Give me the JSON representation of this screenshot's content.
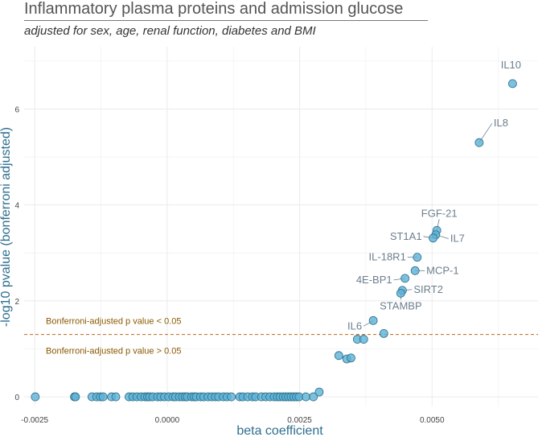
{
  "title": "Inflammatory plasma proteins and admission glucose",
  "subtitle": "adjusted for sex, age, renal function, diabetes and BMI",
  "chart_data": {
    "type": "scatter",
    "xlabel": "beta coefficient",
    "ylabel": "-log10 pvalue (bonferroni adjusted)",
    "xlim": [
      -0.0027,
      0.007
    ],
    "ylim": [
      -0.2,
      7.3
    ],
    "x_ticks": [
      -0.0025,
      0.0,
      0.0025,
      0.005
    ],
    "x_tick_labels": [
      "-0.0025",
      "0.0000",
      "0.0025",
      "0.0050"
    ],
    "y_ticks": [
      0,
      2,
      4,
      6
    ],
    "y_tick_labels": [
      "0",
      "2",
      "4",
      "6"
    ],
    "grid": true,
    "threshold": {
      "y": 1.3,
      "label_above": "Bonferroni-adjusted p value < 0.05",
      "label_below": "Bonferroni-adjusted p value > 0.05",
      "color": "#C0651B"
    },
    "point_color": "#5BB2D6",
    "point_stroke": "#2F6F8A",
    "label_color": "#6C7E8E",
    "labeled_points": [
      {
        "name": "IL10",
        "x": 0.00652,
        "y": 6.53
      },
      {
        "name": "IL8",
        "x": 0.00589,
        "y": 5.3
      },
      {
        "name": "FGF-21",
        "x": 0.00509,
        "y": 3.47
      },
      {
        "name": "IL7",
        "x": 0.00507,
        "y": 3.38
      },
      {
        "name": "ST1A1",
        "x": 0.00502,
        "y": 3.31
      },
      {
        "name": "IL-18R1",
        "x": 0.00472,
        "y": 2.91
      },
      {
        "name": "MCP-1",
        "x": 0.00468,
        "y": 2.63
      },
      {
        "name": "4E-BP1",
        "x": 0.00449,
        "y": 2.47
      },
      {
        "name": "SIRT2",
        "x": 0.00444,
        "y": 2.22
      },
      {
        "name": "STAMBP",
        "x": 0.00441,
        "y": 2.16
      },
      {
        "name": "IL6",
        "x": 0.00389,
        "y": 1.59
      }
    ],
    "points": [
      {
        "x": 0.00409,
        "y": 1.32
      },
      {
        "x": 0.00359,
        "y": 1.2
      },
      {
        "x": 0.00371,
        "y": 1.2
      },
      {
        "x": 0.00324,
        "y": 0.86
      },
      {
        "x": 0.00339,
        "y": 0.79
      },
      {
        "x": 0.00347,
        "y": 0.81
      },
      {
        "x": 0.00287,
        "y": 0.1
      },
      {
        "x": -0.00249,
        "y": 0
      },
      {
        "x": -0.00175,
        "y": 0
      },
      {
        "x": -0.00173,
        "y": 0
      },
      {
        "x": -0.00142,
        "y": 0
      },
      {
        "x": -0.00133,
        "y": 0
      },
      {
        "x": -0.00126,
        "y": 0
      },
      {
        "x": -0.00121,
        "y": 0
      },
      {
        "x": -0.00105,
        "y": 0
      },
      {
        "x": -0.00097,
        "y": 0
      },
      {
        "x": -0.00072,
        "y": 0
      },
      {
        "x": -0.00065,
        "y": 0
      },
      {
        "x": -0.00057,
        "y": 0
      },
      {
        "x": -0.00049,
        "y": 0
      },
      {
        "x": -0.00042,
        "y": 0
      },
      {
        "x": -0.00037,
        "y": 0
      },
      {
        "x": -0.00033,
        "y": 0
      },
      {
        "x": -0.00027,
        "y": 0
      },
      {
        "x": -0.00018,
        "y": 0
      },
      {
        "x": -0.00012,
        "y": 0
      },
      {
        "x": -5e-05,
        "y": 0
      },
      {
        "x": 3e-05,
        "y": 0
      },
      {
        "x": 0.00011,
        "y": 0
      },
      {
        "x": 0.00016,
        "y": 0
      },
      {
        "x": 0.00023,
        "y": 0
      },
      {
        "x": 0.00029,
        "y": 0
      },
      {
        "x": 0.00034,
        "y": 0
      },
      {
        "x": 0.00038,
        "y": 0
      },
      {
        "x": 0.00046,
        "y": 0
      },
      {
        "x": 0.00051,
        "y": 0
      },
      {
        "x": 0.00055,
        "y": 0
      },
      {
        "x": 0.00063,
        "y": 0
      },
      {
        "x": 0.00069,
        "y": 0
      },
      {
        "x": 0.00077,
        "y": 0
      },
      {
        "x": 0.00084,
        "y": 0
      },
      {
        "x": 0.00091,
        "y": 0
      },
      {
        "x": 0.00097,
        "y": 0
      },
      {
        "x": 0.00106,
        "y": 0
      },
      {
        "x": 0.00113,
        "y": 0
      },
      {
        "x": 0.00121,
        "y": 0
      },
      {
        "x": 0.00137,
        "y": 0
      },
      {
        "x": 0.00143,
        "y": 0
      },
      {
        "x": 0.00152,
        "y": 0
      },
      {
        "x": 0.00161,
        "y": 0
      },
      {
        "x": 0.00167,
        "y": 0
      },
      {
        "x": 0.00178,
        "y": 0
      },
      {
        "x": 0.00186,
        "y": 0
      },
      {
        "x": 0.00194,
        "y": 0
      },
      {
        "x": 0.00202,
        "y": 0
      },
      {
        "x": 0.00208,
        "y": 0
      },
      {
        "x": 0.00213,
        "y": 0
      },
      {
        "x": 0.00219,
        "y": 0
      },
      {
        "x": 0.00224,
        "y": 0
      },
      {
        "x": 0.00229,
        "y": 0
      },
      {
        "x": 0.00234,
        "y": 0
      },
      {
        "x": 0.00239,
        "y": 0
      },
      {
        "x": 0.00244,
        "y": 0
      },
      {
        "x": 0.00249,
        "y": 0
      },
      {
        "x": 0.00262,
        "y": 0
      },
      {
        "x": 0.00276,
        "y": 0
      }
    ]
  }
}
